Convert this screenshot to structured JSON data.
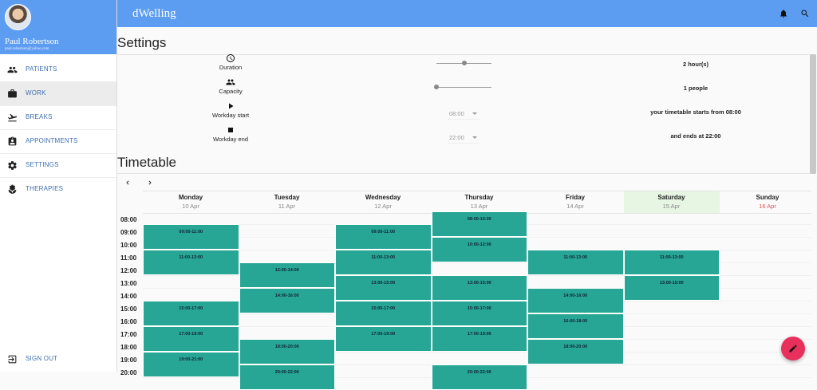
{
  "user": {
    "name": "Paul Robertson",
    "email": "paul.robertson@yahoo.com"
  },
  "app": {
    "title": "dWelling"
  },
  "nav": {
    "items": [
      {
        "label": "PATIENTS",
        "icon": "people-icon"
      },
      {
        "label": "WORK",
        "icon": "briefcase-icon"
      },
      {
        "label": "BREAKS",
        "icon": "airplane-icon"
      },
      {
        "label": "APPOINTMENTS",
        "icon": "assignment-icon"
      },
      {
        "label": "SETTINGS",
        "icon": "gear-icon"
      },
      {
        "label": "THERAPIES",
        "icon": "spa-icon"
      }
    ],
    "signout": "SIGN OUT"
  },
  "settings": {
    "title": "Settings",
    "duration": {
      "label": "Duration",
      "value": "2 hour(s)",
      "level": 0.5
    },
    "capacity": {
      "label": "Capacity",
      "value": "1 people",
      "level": 0.0
    },
    "workday_start": {
      "label": "Workday start",
      "select": "08:00",
      "text": "your timetable starts from 08:00"
    },
    "workday_end": {
      "label": "Workday end",
      "select": "22:00",
      "text": "and ends at 22:00"
    }
  },
  "timetable": {
    "title": "Timetable",
    "days": [
      {
        "name": "Monday",
        "date": "10 Apr"
      },
      {
        "name": "Tuesday",
        "date": "11 Apr"
      },
      {
        "name": "Wednesday",
        "date": "12 Apr"
      },
      {
        "name": "Thursday",
        "date": "13 Apr"
      },
      {
        "name": "Friday",
        "date": "14 Apr"
      },
      {
        "name": "Saturday",
        "date": "15 Apr"
      },
      {
        "name": "Sunday",
        "date": "16 Apr"
      }
    ],
    "hours": [
      "08:00",
      "09:00",
      "10:00",
      "11:00",
      "12:00",
      "13:00",
      "14:00",
      "15:00",
      "16:00",
      "17:00",
      "18:00",
      "19:00",
      "20:00"
    ],
    "slots": [
      {
        "day": 0,
        "start": 9,
        "label": "09:00-11:00"
      },
      {
        "day": 0,
        "start": 11,
        "label": "11:00-13:00"
      },
      {
        "day": 0,
        "start": 15,
        "label": "15:00-17:00"
      },
      {
        "day": 0,
        "start": 17,
        "label": "17:00-19:00"
      },
      {
        "day": 0,
        "start": 19,
        "label": "19:00-21:00"
      },
      {
        "day": 1,
        "start": 12,
        "label": "12:00-14:00"
      },
      {
        "day": 1,
        "start": 14,
        "label": "14:00-16:00"
      },
      {
        "day": 1,
        "start": 18,
        "label": "18:00-20:00"
      },
      {
        "day": 1,
        "start": 20,
        "label": "20:00-22:00"
      },
      {
        "day": 2,
        "start": 9,
        "label": "09:00-11:00"
      },
      {
        "day": 2,
        "start": 11,
        "label": "11:00-13:00"
      },
      {
        "day": 2,
        "start": 13,
        "label": "13:00-15:00"
      },
      {
        "day": 2,
        "start": 15,
        "label": "15:00-17:00"
      },
      {
        "day": 2,
        "start": 17,
        "label": "17:00-19:00"
      },
      {
        "day": 3,
        "start": 8,
        "label": "08:00-10:00"
      },
      {
        "day": 3,
        "start": 10,
        "label": "10:00-12:00"
      },
      {
        "day": 3,
        "start": 13,
        "label": "13:00-15:00"
      },
      {
        "day": 3,
        "start": 15,
        "label": "15:00-17:00"
      },
      {
        "day": 3,
        "start": 17,
        "label": "17:00-19:00"
      },
      {
        "day": 3,
        "start": 20,
        "label": "20:00-22:00"
      },
      {
        "day": 4,
        "start": 11,
        "label": "11:00-13:00"
      },
      {
        "day": 4,
        "start": 14,
        "label": "14:00-16:00"
      },
      {
        "day": 4,
        "start": 16,
        "label": "16:00-18:00"
      },
      {
        "day": 4,
        "start": 18,
        "label": "18:00-20:00"
      },
      {
        "day": 5,
        "start": 11,
        "label": "11:00-13:00"
      },
      {
        "day": 5,
        "start": 13,
        "label": "13:00-15:00"
      }
    ]
  }
}
